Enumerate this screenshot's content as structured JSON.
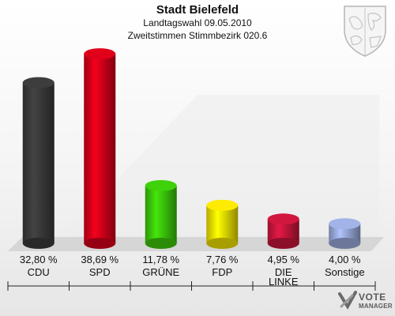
{
  "header": {
    "title": "Stadt Bielefeld",
    "subtitle": "Landtagswahl 09.05.2010",
    "subtitle2": "Zweitstimmen Stimmbezirk 020.6"
  },
  "chart_data": {
    "type": "bar",
    "title": "Stadt Bielefeld",
    "subtitle": "Landtagswahl 09.05.2010 — Zweitstimmen Stimmbezirk 020.6",
    "categories": [
      "CDU",
      "SPD",
      "GRÜNE",
      "FDP",
      "DIE LINKE",
      "Sonstige"
    ],
    "values": [
      32.8,
      38.69,
      11.78,
      7.76,
      4.95,
      4.0
    ],
    "value_labels": [
      "32,80 %",
      "38,69 %",
      "11,78 %",
      "7,76 %",
      "4,95 %",
      "4,00 %"
    ],
    "category_labels": [
      [
        "CDU"
      ],
      [
        "SPD"
      ],
      [
        "GRÜNE"
      ],
      [
        "FDP"
      ],
      [
        "DIE",
        "LINKE"
      ],
      [
        "Sonstige"
      ]
    ],
    "colors": [
      "#3a3a3a",
      "#d50019",
      "#3cc80a",
      "#f2e100",
      "#c8163c",
      "#9aaadc"
    ],
    "ylim": [
      0,
      40
    ],
    "grid": false,
    "legend": "none"
  },
  "logo": {
    "line1": "VOTE",
    "line2": "MANAGER"
  }
}
